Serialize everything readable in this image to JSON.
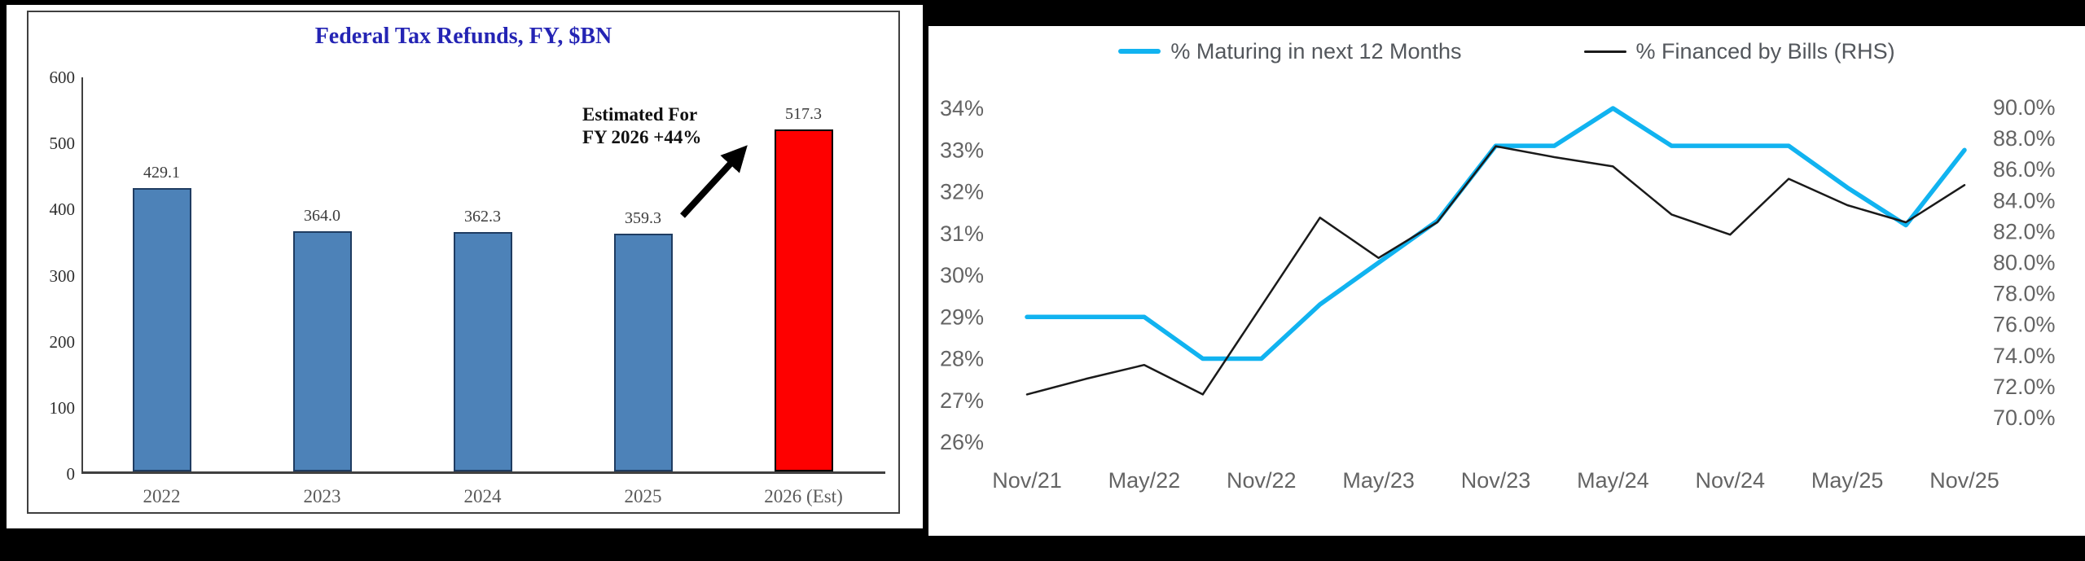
{
  "page": {
    "background": "#000000"
  },
  "chart_data": [
    {
      "type": "bar",
      "title": "Federal Tax Refunds, FY, $BN",
      "title_color": "#2424b4",
      "categories": [
        "2022",
        "2023",
        "2024",
        "2025",
        "2026 (Est)"
      ],
      "values": [
        429.1,
        364.0,
        362.3,
        359.3,
        517.3
      ],
      "bar_labels": [
        "429.1",
        "364.0",
        "362.3",
        "359.3",
        "517.3"
      ],
      "bar_colors": [
        "#4d82b8",
        "#4d82b8",
        "#4d82b8",
        "#4d82b8",
        "#fe0000"
      ],
      "bar_border_colors": [
        "#1f3c61",
        "#1f3c61",
        "#1f3c61",
        "#1f3c61",
        "#000000"
      ],
      "xlabel": "",
      "ylabel": "",
      "ylim": [
        0,
        600
      ],
      "y_ticks": [
        0,
        100,
        200,
        300,
        400,
        500,
        600
      ],
      "grid": false,
      "axis_color": "#404040",
      "tick_color": "#2e2e2e",
      "category_color": "#5a5a5a",
      "value_label_color": "#3b3b3b",
      "annotation": {
        "line1": "Estimated For",
        "line2": "FY 2026 +44%",
        "arrow_color": "#000000"
      }
    },
    {
      "type": "line",
      "title": "",
      "x": [
        "Nov/21",
        "Feb/22",
        "May/22",
        "Aug/22",
        "Nov/22",
        "Feb/23",
        "May/23",
        "Aug/23",
        "Nov/23",
        "Feb/24",
        "May/24",
        "Aug/24",
        "Nov/24",
        "Feb/25",
        "May/25",
        "Aug/25",
        "Nov/25"
      ],
      "x_tick_labels": [
        "Nov/21",
        "May/22",
        "Nov/22",
        "May/23",
        "Nov/23",
        "May/24",
        "Nov/24",
        "May/25",
        "Nov/25"
      ],
      "series": [
        {
          "name": "% Maturing in next 12 Months",
          "axis": "left",
          "color": "#11b3f0",
          "stroke_width": 5.5,
          "values": [
            29.0,
            29.0,
            29.0,
            28.0,
            28.0,
            29.3,
            30.3,
            31.3,
            33.1,
            33.1,
            34.0,
            33.1,
            33.1,
            33.1,
            32.1,
            31.2,
            33.0
          ]
        },
        {
          "name": "% Financed by Bills (RHS)",
          "axis": "right",
          "color": "#1a1a1a",
          "stroke_width": 2.5,
          "values": [
            71.5,
            72.5,
            73.4,
            71.5,
            77.2,
            82.9,
            80.3,
            82.6,
            87.5,
            86.8,
            86.2,
            83.1,
            81.8,
            85.4,
            83.7,
            82.6,
            85.0
          ]
        }
      ],
      "left_axis": {
        "min": 26,
        "max": 34,
        "ticks": [
          34,
          33,
          32,
          31,
          30,
          29,
          28,
          27,
          26
        ],
        "tick_suffix": "%"
      },
      "right_axis": {
        "min": 70,
        "max": 90,
        "ticks": [
          90,
          88,
          86,
          84,
          82,
          80,
          78,
          76,
          74,
          72,
          70
        ],
        "tick_suffix": "%",
        "decimals": 1
      },
      "legend_position": "top",
      "grid": false,
      "tick_color": "#646464",
      "legend_color": "#53575c"
    }
  ]
}
